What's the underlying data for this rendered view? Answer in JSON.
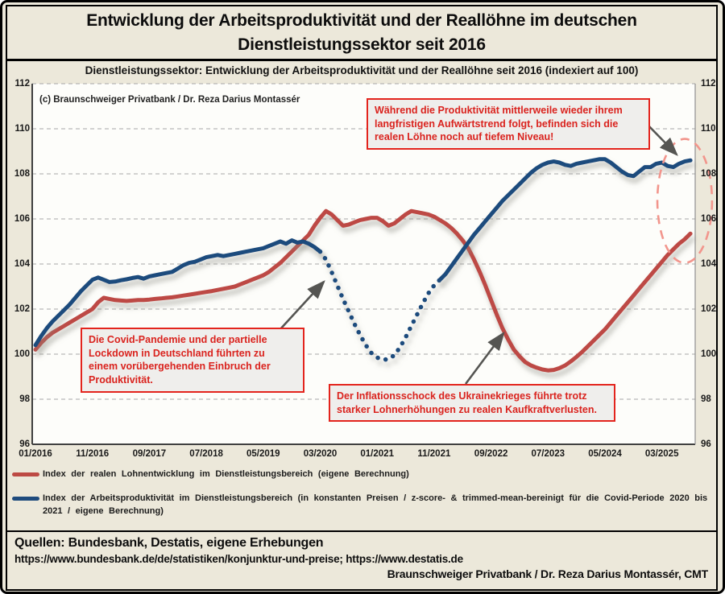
{
  "header": {
    "title_line1": "Entwicklung der Arbeitsproduktivität und der Reallöhne im deutschen",
    "title_line2": "Dienstleistungssektor seit 2016"
  },
  "chart": {
    "title": "Dienstleistungssektor: Entwicklung der Arbeitsproduktivität und der Reallöhne seit 2016 (indexiert auf 100)",
    "copyright": "(c) Braunschweiger Privatbank / Dr. Reza Darius Montassér"
  },
  "annotations": {
    "trend": "Während die Produktivität  mittlerweile wieder ihrem langfristigen Aufwärtstrend folgt, befinden sich die realen Löhne noch auf tiefem Niveau!",
    "covid": "Die Covid-Pandemie und der partielle Lockdown in Deutschland führten zu einem vorübergehenden Einbruch der Produktivität.",
    "ukraine": "Der Inflationsschock des Ukrainekrieges führte trotz starker Lohnerhöhungen zu realen Kaufkraftverlusten."
  },
  "legend": {
    "items": [
      {
        "color": "#bd4a44",
        "label": "Index der realen Lohnentwicklung im Dienstleistungsbereich (eigene Berechnung)"
      },
      {
        "color": "#1f4b7d",
        "label": "Index der Arbeitsproduktivität im Dienstleistungsbereich (in konstanten Preisen / z-score- & trimmed-mean-bereinigt für die Covid-Periode 2020 bis 2021 / eigene Berechnung)"
      }
    ]
  },
  "footer": {
    "sources": "Quellen: Bundesbank, Destatis, eigene Erhebungen",
    "urls": "https://www.bundesbank.de/de/statistiken/konjunktur-und-preise; https://www.destatis.de",
    "credit": "Braunschweiger Privatbank / Dr. Reza Darius Montassér, CMT"
  },
  "chart_data": {
    "type": "line",
    "title": "Dienstleistungssektor: Entwicklung der Arbeitsproduktivität und der Reallöhne seit 2016 (indexiert auf 100)",
    "index_base": 100,
    "ylim": [
      96,
      112
    ],
    "y_ticks": [
      96,
      98,
      100,
      102,
      104,
      106,
      108,
      110,
      112
    ],
    "grid": "horizontal-dashed",
    "x_start_label": "01/2016",
    "x_tick_months": [
      0,
      10,
      20,
      30,
      40,
      50,
      60,
      70,
      80,
      90,
      100,
      110
    ],
    "x_tick_labels": [
      "01/2016",
      "11/2016",
      "09/2017",
      "07/2018",
      "05/2019",
      "03/2020",
      "01/2021",
      "11/2021",
      "09/2022",
      "07/2023",
      "05/2024",
      "03/2025"
    ],
    "series": [
      {
        "name": "Index der realen Lohnentwicklung im Dienstleistungsbereich (eigene Berechnung)",
        "color": "#bd4a44",
        "style": "solid",
        "values": [
          100.2,
          100.5,
          100.75,
          100.95,
          101.1,
          101.25,
          101.4,
          101.55,
          101.7,
          101.85,
          102.0,
          102.3,
          102.5,
          102.45,
          102.4,
          102.38,
          102.36,
          102.38,
          102.4,
          102.4,
          102.42,
          102.45,
          102.47,
          102.5,
          102.52,
          102.56,
          102.6,
          102.64,
          102.68,
          102.72,
          102.76,
          102.8,
          102.85,
          102.9,
          102.95,
          103.0,
          103.1,
          103.2,
          103.3,
          103.4,
          103.5,
          103.65,
          103.85,
          104.05,
          104.3,
          104.55,
          104.8,
          105.05,
          105.3,
          105.7,
          106.05,
          106.35,
          106.2,
          105.95,
          105.7,
          105.75,
          105.85,
          105.95,
          106.0,
          106.05,
          106.05,
          105.9,
          105.7,
          105.8,
          106.0,
          106.2,
          106.35,
          106.3,
          106.25,
          106.2,
          106.1,
          105.95,
          105.8,
          105.6,
          105.35,
          105.05,
          104.7,
          104.2,
          103.65,
          103.05,
          102.4,
          101.75,
          101.15,
          100.65,
          100.2,
          99.9,
          99.65,
          99.5,
          99.4,
          99.32,
          99.28,
          99.3,
          99.38,
          99.5,
          99.68,
          99.88,
          100.1,
          100.35,
          100.6,
          100.85,
          101.1,
          101.4,
          101.7,
          102.0,
          102.3,
          102.6,
          102.9,
          103.2,
          103.5,
          103.8,
          104.1,
          104.4,
          104.65,
          104.9,
          105.1,
          105.35
        ]
      },
      {
        "name": "Index der Arbeitsproduktivität im Dienstleistungsbereich (in konstanten Preisen / z-score- & trimmed-mean-bereinigt für die Covid-Periode 2020 bis 2021 / eigene Berechnung)",
        "color": "#1f4b7d",
        "segments": [
          {
            "from": 0,
            "to": 50,
            "style": "solid"
          },
          {
            "from": 50,
            "to": 71,
            "style": "dotted"
          },
          {
            "from": 71,
            "to": 115,
            "style": "solid"
          }
        ],
        "values": [
          100.4,
          100.8,
          101.15,
          101.45,
          101.7,
          101.95,
          102.2,
          102.5,
          102.8,
          103.05,
          103.3,
          103.4,
          103.3,
          103.2,
          103.22,
          103.28,
          103.32,
          103.38,
          103.42,
          103.35,
          103.45,
          103.5,
          103.55,
          103.6,
          103.65,
          103.8,
          103.95,
          104.05,
          104.1,
          104.2,
          104.3,
          104.35,
          104.4,
          104.35,
          104.4,
          104.45,
          104.5,
          104.55,
          104.6,
          104.65,
          104.7,
          104.8,
          104.9,
          105.0,
          104.9,
          105.05,
          104.95,
          105.0,
          104.9,
          104.75,
          104.55,
          104.2,
          103.65,
          103.05,
          102.45,
          101.9,
          101.35,
          100.85,
          100.4,
          100.05,
          99.85,
          99.75,
          99.78,
          99.95,
          100.3,
          100.75,
          101.25,
          101.75,
          102.25,
          102.7,
          103.05,
          103.3,
          103.55,
          103.9,
          104.25,
          104.6,
          104.95,
          105.3,
          105.6,
          105.9,
          106.2,
          106.5,
          106.8,
          107.05,
          107.3,
          107.55,
          107.8,
          108.05,
          108.25,
          108.4,
          108.5,
          108.55,
          108.5,
          108.4,
          108.35,
          108.45,
          108.5,
          108.55,
          108.6,
          108.65,
          108.65,
          108.5,
          108.3,
          108.1,
          107.95,
          107.9,
          108.1,
          108.3,
          108.3,
          108.45,
          108.5,
          108.35,
          108.3,
          108.45,
          108.55,
          108.6
        ]
      }
    ],
    "highlight_ellipse": {
      "center_month": 114,
      "center_value": 106.8,
      "rx_months": 4.8,
      "ry_values": 2.75,
      "color": "#f2958c"
    }
  }
}
